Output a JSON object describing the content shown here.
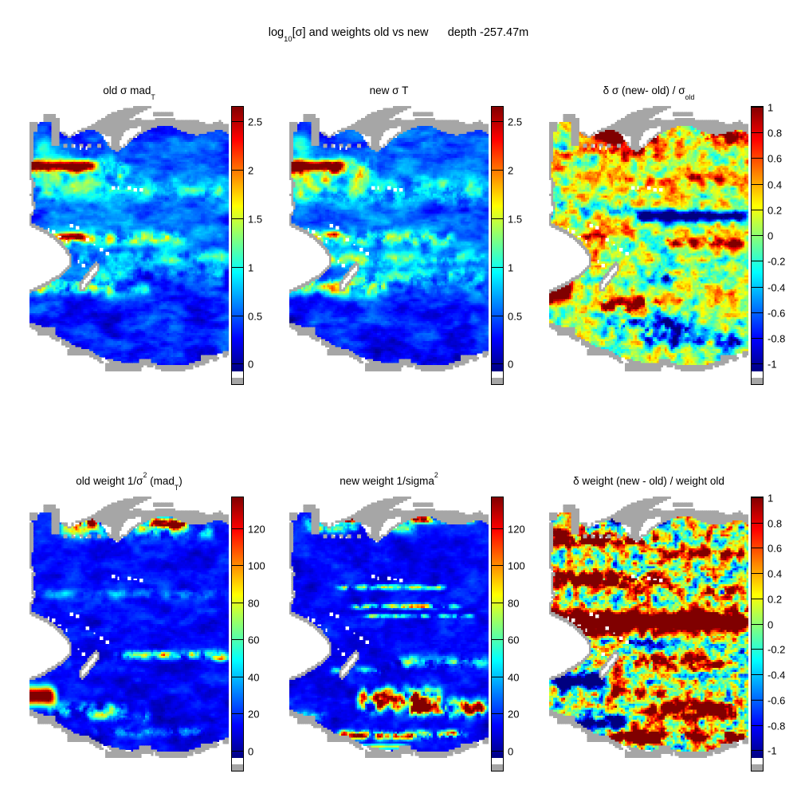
{
  "figure": {
    "title": "log_{10}[σ] and weights old vs new      depth -257.47m"
  },
  "chart_data": {
    "type": "heatmap",
    "subtype": "ocean-map-grid",
    "colormap": "jet",
    "land_color": "#a6a6a6",
    "nodata_color": "#ffffff",
    "layout": {
      "rows": 2,
      "cols": 3,
      "legend": "vertical colorbar right of each map"
    },
    "panels": [
      {
        "id": "old-sigma",
        "title": "old σ mad_{T}",
        "colorbar": {
          "vmin": -0.08,
          "vmax": 2.66,
          "tick_values": [
            0,
            0.5,
            1,
            1.5,
            2,
            2.5
          ],
          "tick_labels": [
            "0",
            "0.5",
            "1",
            "1.5",
            "2",
            "2.5"
          ]
        },
        "field": {
          "seed": 11,
          "base": [
            [
              0,
              0.42
            ],
            [
              0.18,
              0.5
            ],
            [
              0.3,
              0.62
            ],
            [
              0.4,
              0.5
            ],
            [
              0.5,
              0.62
            ],
            [
              0.58,
              0.5
            ],
            [
              0.68,
              0.42
            ],
            [
              0.78,
              0.3
            ],
            [
              1,
              0.28
            ]
          ],
          "noise": [
            0.22,
            7,
            22
          ],
          "noise2": [
            0.1,
            25,
            50
          ],
          "bands": [
            [
              0.215,
              0.02,
              2.3,
              -0.1,
              0.36,
              0
            ],
            [
              0.235,
              0.05,
              0.8,
              -0.1,
              0.52,
              1
            ],
            [
              0.3,
              0.04,
              0.45,
              0,
              1.01,
              1
            ],
            [
              0.475,
              0.025,
              0.85,
              0,
              0.8,
              1
            ],
            [
              0.468,
              0.012,
              1.5,
              0.1,
              0.3,
              0
            ],
            [
              0.55,
              0.018,
              1.6,
              0.12,
              0.22,
              0
            ],
            [
              0.545,
              0.03,
              0.5,
              0.2,
              1.01,
              1
            ],
            [
              0.648,
              0.025,
              1.25,
              -0.1,
              0.45,
              1
            ],
            [
              0.66,
              0.02,
              0.7,
              0.3,
              0.62,
              1
            ],
            [
              0.6,
              0.04,
              0.35,
              0.3,
              1.01,
              1
            ]
          ],
          "blobs": [
            [
              0.06,
              0.15,
              0.05,
              0.045,
              0.6
            ]
          ]
        }
      },
      {
        "id": "new-sigma",
        "title": "new σ T",
        "colorbar": {
          "vmin": -0.08,
          "vmax": 2.66,
          "tick_values": [
            0,
            0.5,
            1,
            1.5,
            2,
            2.5
          ],
          "tick_labels": [
            "0",
            "0.5",
            "1",
            "1.5",
            "2",
            "2.5"
          ]
        },
        "field": {
          "seed": 23,
          "base": [
            [
              0,
              0.42
            ],
            [
              0.18,
              0.5
            ],
            [
              0.3,
              0.62
            ],
            [
              0.4,
              0.5
            ],
            [
              0.5,
              0.62
            ],
            [
              0.58,
              0.5
            ],
            [
              0.68,
              0.42
            ],
            [
              0.78,
              0.3
            ],
            [
              1,
              0.28
            ]
          ],
          "noise": [
            0.22,
            7,
            22
          ],
          "noise2": [
            0.1,
            25,
            50
          ],
          "bands": [
            [
              0.215,
              0.02,
              2.4,
              -0.1,
              0.3,
              0
            ],
            [
              0.24,
              0.05,
              0.9,
              -0.1,
              0.45,
              1
            ],
            [
              0.305,
              0.045,
              0.6,
              0,
              1.01,
              1
            ],
            [
              0.475,
              0.025,
              0.9,
              0,
              0.85,
              1
            ],
            [
              0.46,
              0.012,
              1.6,
              0.15,
              0.28,
              0
            ],
            [
              0.55,
              0.02,
              1.5,
              0.12,
              0.24,
              0
            ],
            [
              0.55,
              0.03,
              0.55,
              0.2,
              1.01,
              1
            ],
            [
              0.648,
              0.027,
              1.3,
              -0.1,
              0.5,
              1
            ],
            [
              0.62,
              0.05,
              0.5,
              0.25,
              1.01,
              1
            ]
          ],
          "blobs": [
            [
              0.06,
              0.15,
              0.05,
              0.045,
              0.6
            ]
          ]
        }
      },
      {
        "id": "delta-sigma",
        "title": "δ σ (new- old) / σ_{old}",
        "colorbar": {
          "vmin": -1.06,
          "vmax": 1.005,
          "tick_values": [
            -1,
            -0.8,
            -0.6,
            -0.4,
            -0.2,
            0,
            0.2,
            0.4,
            0.6,
            0.8,
            1
          ],
          "tick_labels": [
            "-1",
            "-0.8",
            "-0.6",
            "-0.4",
            "-0.2",
            "0",
            "0.2",
            "0.4",
            "0.6",
            "0.8",
            "1"
          ]
        },
        "field": {
          "seed": 37,
          "base": [
            [
              0,
              0.15
            ],
            [
              0.35,
              0.2
            ],
            [
              0.55,
              0.12
            ],
            [
              0.75,
              0.05
            ],
            [
              1,
              -0.05
            ]
          ],
          "noise": [
            0.38,
            26,
            40
          ],
          "noise2": [
            0.22,
            8,
            16
          ],
          "bands": [
            [
              0.1,
              0.03,
              1.9,
              0.22,
              0.56,
              0
            ],
            [
              0.105,
              0.03,
              1.2,
              0.7,
              1.01,
              1
            ],
            [
              0.17,
              0.025,
              0.7,
              -0.1,
              0.6,
              1
            ],
            [
              0.26,
              0.02,
              0.5,
              0.3,
              1.01,
              1
            ],
            [
              0.395,
              0.022,
              -1.5,
              0.42,
              1.01,
              0
            ],
            [
              0.37,
              0.03,
              -0.7,
              -0.1,
              0.42,
              1
            ],
            [
              0.49,
              0.018,
              1.0,
              0.55,
              1.01,
              1
            ],
            [
              0.465,
              0.012,
              0.9,
              0.05,
              0.3,
              1
            ],
            [
              0.665,
              0.038,
              2.2,
              -0.1,
              0.13,
              0
            ],
            [
              0.715,
              0.025,
              1.7,
              0.24,
              0.6,
              1
            ],
            [
              0.62,
              0.03,
              -0.9,
              0.5,
              0.85,
              1
            ],
            [
              0.79,
              0.04,
              -1.0,
              0.25,
              0.75,
              1
            ],
            [
              0.84,
              0.03,
              -0.8,
              0.45,
              1.01,
              1
            ]
          ],
          "blobs": [
            [
              0.06,
              0.15,
              0.05,
              0.045,
              -0.6
            ]
          ]
        }
      },
      {
        "id": "old-weight",
        "title": "old weight 1/σ^{2} (mad_{T})",
        "colorbar": {
          "vmin": -4,
          "vmax": 137,
          "tick_values": [
            0,
            20,
            40,
            60,
            80,
            100,
            120
          ],
          "tick_labels": [
            "0",
            "20",
            "40",
            "60",
            "80",
            "100",
            "120"
          ]
        },
        "field": {
          "seed": 41,
          "base": [
            [
              0,
              16
            ],
            [
              0.5,
              13
            ],
            [
              1,
              11
            ]
          ],
          "noise": [
            7,
            9,
            24
          ],
          "noise2": [
            4,
            26,
            48
          ],
          "bands": [
            [
              0.095,
              0.02,
              135,
              0.16,
              0.46,
              1
            ],
            [
              0.1,
              0.02,
              130,
              0.54,
              0.84,
              1
            ],
            [
              0.125,
              0.028,
              45,
              0.1,
              0.95,
              1
            ],
            [
              0.355,
              0.018,
              20,
              0.05,
              1.01,
              1
            ],
            [
              0.575,
              0.016,
              70,
              0.42,
              1.01,
              1
            ],
            [
              0.59,
              0.01,
              80,
              0.9,
              1.01,
              0
            ],
            [
              0.725,
              0.033,
              155,
              -0.1,
              0.15,
              0
            ],
            [
              0.775,
              0.022,
              70,
              0.08,
              0.5,
              1
            ],
            [
              0.8,
              0.018,
              55,
              0.28,
              0.62,
              1
            ],
            [
              0.855,
              0.018,
              30,
              0.3,
              0.9,
              1
            ]
          ],
          "blobs": [
            [
              0.06,
              0.15,
              0.05,
              0.045,
              10
            ]
          ]
        }
      },
      {
        "id": "new-weight",
        "title": "new weight 1/sigma^{2}",
        "colorbar": {
          "vmin": -4,
          "vmax": 137,
          "tick_values": [
            0,
            20,
            40,
            60,
            80,
            100,
            120
          ],
          "tick_labels": [
            "0",
            "20",
            "40",
            "60",
            "80",
            "100",
            "120"
          ]
        },
        "field": {
          "seed": 53,
          "base": [
            [
              0,
              15
            ],
            [
              1,
              11
            ]
          ],
          "noise": [
            6.5,
            9,
            24
          ],
          "noise2": [
            4,
            26,
            48
          ],
          "bands": [
            [
              0.082,
              0.013,
              130,
              0.06,
              0.96,
              1
            ],
            [
              0.115,
              0.018,
              55,
              0.05,
              0.65,
              1
            ],
            [
              0.33,
              0.009,
              75,
              0.22,
              0.8,
              1
            ],
            [
              0.4,
              0.009,
              95,
              0.28,
              0.88,
              1
            ],
            [
              0.435,
              0.007,
              55,
              0.35,
              0.95,
              1
            ],
            [
              0.6,
              0.022,
              55,
              0.5,
              1.01,
              1
            ],
            [
              0.635,
              0.013,
              45,
              0.18,
              0.5,
              1
            ],
            [
              0.74,
              0.038,
              160,
              0.33,
              0.78,
              1
            ],
            [
              0.77,
              0.028,
              150,
              0.58,
              1.01,
              1
            ],
            [
              0.8,
              0.018,
              60,
              0,
              0.2,
              1
            ],
            [
              0.868,
              0.015,
              125,
              0.22,
              0.9,
              1
            ],
            [
              0.91,
              0.01,
              70,
              0.3,
              0.62,
              0
            ]
          ],
          "blobs": [
            [
              0.06,
              0.15,
              0.05,
              0.045,
              5
            ]
          ]
        }
      },
      {
        "id": "delta-weight",
        "title": "δ weight (new - old) / weight old",
        "colorbar": {
          "vmin": -1.06,
          "vmax": 1.005,
          "tick_values": [
            -1,
            -0.8,
            -0.6,
            -0.4,
            -0.2,
            0,
            0.2,
            0.4,
            0.6,
            0.8,
            1
          ],
          "tick_labels": [
            "-1",
            "-0.8",
            "-0.6",
            "-0.4",
            "-0.2",
            "0",
            "0.2",
            "0.4",
            "0.6",
            "0.8",
            "1"
          ]
        },
        "field": {
          "seed": 67,
          "base": [
            [
              0,
              0
            ],
            [
              1,
              0.08
            ]
          ],
          "noise": [
            0.7,
            30,
            46
          ],
          "noise2": [
            0.35,
            9,
            18
          ],
          "bands": [
            [
              0.075,
              0.03,
              -1.7,
              0.28,
              0.62,
              0
            ],
            [
              0.06,
              0.018,
              1.3,
              0.02,
              0.26,
              1
            ],
            [
              0.155,
              0.025,
              1.8,
              -0.1,
              0.56,
              1
            ],
            [
              0.21,
              0.022,
              1.5,
              0.55,
              1.01,
              1
            ],
            [
              0.3,
              0.028,
              2.0,
              -0.1,
              0.62,
              1
            ],
            [
              0.345,
              0.018,
              1.2,
              0.68,
              1.01,
              1
            ],
            [
              0.455,
              0.035,
              2.4,
              -0.1,
              1.01,
              0
            ],
            [
              0.53,
              0.018,
              -0.8,
              0.1,
              0.7,
              1
            ],
            [
              0.6,
              0.028,
              1.6,
              0.42,
              0.9,
              1
            ],
            [
              0.67,
              0.032,
              -1.8,
              0,
              0.3,
              0
            ],
            [
              0.715,
              0.02,
              1.4,
              0.3,
              0.72,
              1
            ],
            [
              0.775,
              0.032,
              1.9,
              0.48,
              1.01,
              1
            ],
            [
              0.825,
              0.028,
              -1.5,
              0.1,
              0.42,
              0
            ],
            [
              0.875,
              0.022,
              1.9,
              0.28,
              1.01,
              1
            ]
          ],
          "blobs": [
            [
              0.06,
              0.15,
              0.05,
              0.045,
              1.2
            ]
          ]
        }
      }
    ]
  }
}
